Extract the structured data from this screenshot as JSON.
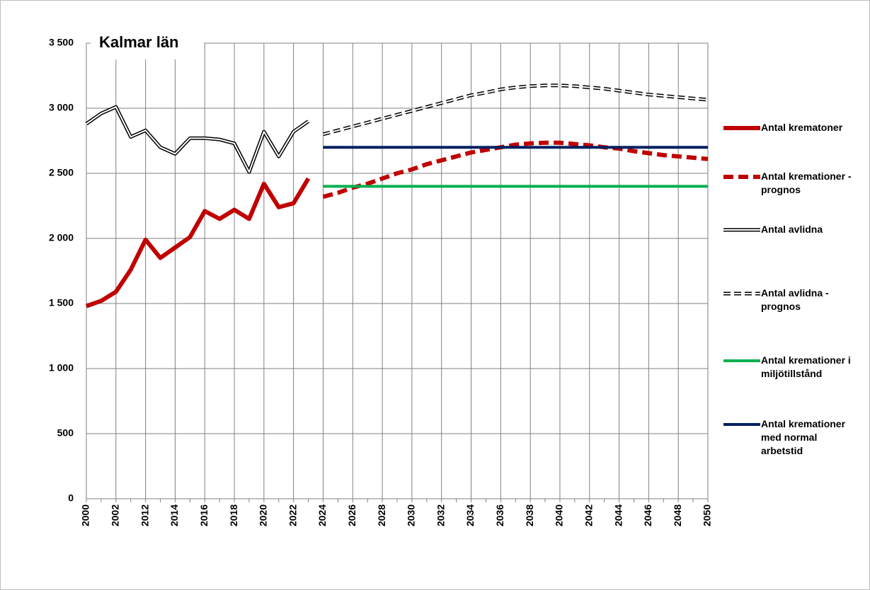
{
  "chart_data": {
    "type": "line",
    "title": "Kalmar län",
    "categories": [
      "2000",
      null,
      "2002",
      null,
      "2012",
      null,
      "2014",
      null,
      "2016",
      null,
      "2018",
      null,
      "2020",
      null,
      "2022",
      null,
      "2024",
      null,
      "2026",
      null,
      "2028",
      null,
      "2030",
      null,
      "2032",
      null,
      "2034",
      null,
      "2036",
      null,
      "2038",
      null,
      "2040",
      null,
      "2042",
      null,
      "2044",
      null,
      "2046",
      null,
      "2048",
      null,
      "2050"
    ],
    "ylim": [
      0,
      3500
    ],
    "yticks": [
      0,
      500,
      {
        "value": 1000,
        "label": "1 000"
      },
      {
        "value": 1500,
        "label": "1 500"
      },
      {
        "value": 2000,
        "label": "2 000"
      },
      {
        "value": 2500,
        "label": "2 500"
      },
      {
        "value": 3000,
        "label": "3 000"
      },
      {
        "value": 3500,
        "label": "3 500"
      }
    ],
    "grid": true,
    "legend": "right",
    "series": [
      {
        "name": "Antal krematoner",
        "color": "#c00000",
        "width": 6,
        "values": [
          1480,
          1520,
          1590,
          1760,
          1990,
          1850,
          1930,
          2010,
          2210,
          2150,
          2220,
          2150,
          2420,
          2240,
          2270,
          2460,
          null,
          null,
          null,
          null,
          null,
          null,
          null,
          null,
          null,
          null,
          null,
          null,
          null,
          null,
          null,
          null,
          null,
          null,
          null,
          null,
          null,
          null,
          null,
          null,
          null,
          null,
          null
        ]
      },
      {
        "name": "Antal kremationer - prognos",
        "color": "#c00000",
        "width": 6,
        "dashed": true,
        "values": [
          null,
          null,
          null,
          null,
          null,
          null,
          null,
          null,
          null,
          null,
          null,
          null,
          null,
          null,
          null,
          null,
          2320,
          2350,
          2390,
          2420,
          2460,
          2500,
          2530,
          2570,
          2600,
          2630,
          2660,
          2680,
          2700,
          2720,
          2730,
          2735,
          2735,
          2725,
          2715,
          2700,
          2690,
          2670,
          2655,
          2640,
          2630,
          2620,
          2610
        ]
      },
      {
        "name": "Antal avlidna",
        "color": "#000000",
        "width": 5,
        "double": true,
        "values": [
          2880,
          2960,
          3010,
          2780,
          2830,
          2700,
          2650,
          2770,
          2770,
          2760,
          2730,
          2510,
          2820,
          2630,
          2820,
          2900,
          null,
          null,
          null,
          null,
          null,
          null,
          null,
          null,
          null,
          null,
          null,
          null,
          null,
          null,
          null,
          null,
          null,
          null,
          null,
          null,
          null,
          null,
          null,
          null,
          null,
          null,
          null
        ]
      },
      {
        "name": "Antal avlidna - prognos",
        "color": "#000000",
        "width": 5,
        "double": true,
        "dashed": true,
        "values": [
          null,
          null,
          null,
          null,
          null,
          null,
          null,
          null,
          null,
          null,
          null,
          null,
          null,
          null,
          null,
          null,
          2800,
          2830,
          2860,
          2890,
          2920,
          2950,
          2980,
          3010,
          3040,
          3070,
          3100,
          3120,
          3145,
          3160,
          3170,
          3175,
          3175,
          3170,
          3160,
          3150,
          3135,
          3120,
          3105,
          3095,
          3085,
          3075,
          3065
        ]
      },
      {
        "name": "Antal kremationer i miljötillstånd",
        "color": "#00b050",
        "width": 4,
        "values": [
          null,
          null,
          null,
          null,
          null,
          null,
          null,
          null,
          null,
          null,
          null,
          null,
          null,
          null,
          null,
          null,
          2400,
          2400,
          2400,
          2400,
          2400,
          2400,
          2400,
          2400,
          2400,
          2400,
          2400,
          2400,
          2400,
          2400,
          2400,
          2400,
          2400,
          2400,
          2400,
          2400,
          2400,
          2400,
          2400,
          2400,
          2400,
          2400,
          2400
        ]
      },
      {
        "name": "Antal kremationer med normal arbetstid",
        "color": "#002060",
        "width": 4,
        "values": [
          null,
          null,
          null,
          null,
          null,
          null,
          null,
          null,
          null,
          null,
          null,
          null,
          null,
          null,
          null,
          null,
          2700,
          2700,
          2700,
          2700,
          2700,
          2700,
          2700,
          2700,
          2700,
          2700,
          2700,
          2700,
          2700,
          2700,
          2700,
          2700,
          2700,
          2700,
          2700,
          2700,
          2700,
          2700,
          2700,
          2700,
          2700,
          2700,
          2700
        ]
      }
    ]
  }
}
